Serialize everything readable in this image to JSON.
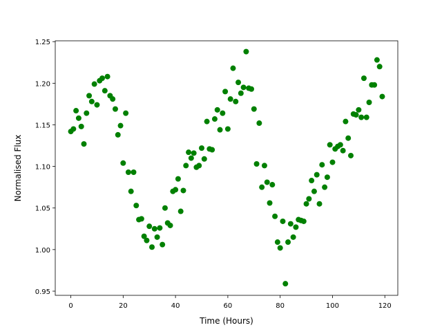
{
  "chart_data": {
    "type": "scatter",
    "xlabel": "Time (Hours)",
    "ylabel": "Normalised Flux",
    "color": "#008000",
    "x": [
      0,
      1,
      2,
      3,
      4,
      5,
      6,
      7,
      8,
      9,
      10,
      11,
      12,
      13,
      14,
      15,
      16,
      17,
      18,
      19,
      20,
      21,
      22,
      23,
      24,
      25,
      26,
      27,
      28,
      29,
      30,
      31,
      32,
      33,
      34,
      35,
      36,
      37,
      38,
      39,
      40,
      41,
      42,
      43,
      44,
      45,
      46,
      47,
      48,
      49,
      50,
      51,
      52,
      53,
      54,
      55,
      56,
      57,
      58,
      59,
      60,
      61,
      62,
      63,
      64,
      65,
      66,
      67,
      68,
      69,
      70,
      71,
      72,
      73,
      74,
      75,
      76,
      77,
      78,
      79,
      80,
      81,
      82,
      83,
      84,
      85,
      86,
      87,
      88,
      89,
      90,
      91,
      92,
      93,
      94,
      95,
      96,
      97,
      98,
      99,
      100,
      101,
      102,
      103,
      104,
      105,
      106,
      107,
      108,
      109,
      110,
      111,
      112,
      113,
      114,
      115,
      116,
      117,
      118,
      119
    ],
    "values": [
      1.142,
      1.145,
      1.167,
      1.158,
      1.148,
      1.127,
      1.164,
      1.185,
      1.178,
      1.199,
      1.174,
      1.203,
      1.206,
      1.191,
      1.208,
      1.185,
      1.181,
      1.169,
      1.138,
      1.149,
      1.104,
      1.164,
      1.093,
      1.07,
      1.093,
      1.053,
      1.036,
      1.037,
      1.016,
      1.011,
      1.028,
      1.003,
      1.025,
      1.015,
      1.026,
      1.006,
      1.05,
      1.032,
      1.029,
      1.07,
      1.072,
      1.085,
      1.046,
      1.071,
      1.101,
      1.117,
      1.11,
      1.116,
      1.099,
      1.101,
      1.122,
      1.109,
      1.154,
      1.121,
      1.12,
      1.157,
      1.168,
      1.144,
      1.164,
      1.19,
      1.145,
      1.181,
      1.218,
      1.178,
      1.201,
      1.188,
      1.195,
      1.238,
      1.194,
      1.193,
      1.169,
      1.103,
      1.152,
      1.075,
      1.101,
      1.081,
      1.056,
      1.078,
      1.04,
      1.009,
      1.002,
      1.034,
      0.959,
      1.009,
      1.031,
      1.015,
      1.027,
      1.036,
      1.035,
      1.034,
      1.055,
      1.061,
      1.083,
      1.07,
      1.09,
      1.055,
      1.102,
      1.075,
      1.087,
      1.126,
      1.105,
      1.121,
      1.124,
      1.126,
      1.119,
      1.154,
      1.134,
      1.113,
      1.163,
      1.162,
      1.168,
      1.159,
      1.206,
      1.159,
      1.177,
      1.198,
      1.198,
      1.228,
      1.22,
      1.184
    ],
    "xlim": [
      -5.95,
      124.95
    ],
    "xticks": [
      0,
      20,
      40,
      60,
      80,
      100,
      120
    ],
    "ylim": [
      0.945,
      1.251
    ],
    "yticks": [
      0.95,
      {
        "value": 1,
        "label": "1.00"
      },
      1.05,
      {
        "value": 1.1,
        "label": "1.10"
      },
      1.15,
      {
        "value": 1.2,
        "label": "1.20"
      },
      1.25
    ]
  }
}
